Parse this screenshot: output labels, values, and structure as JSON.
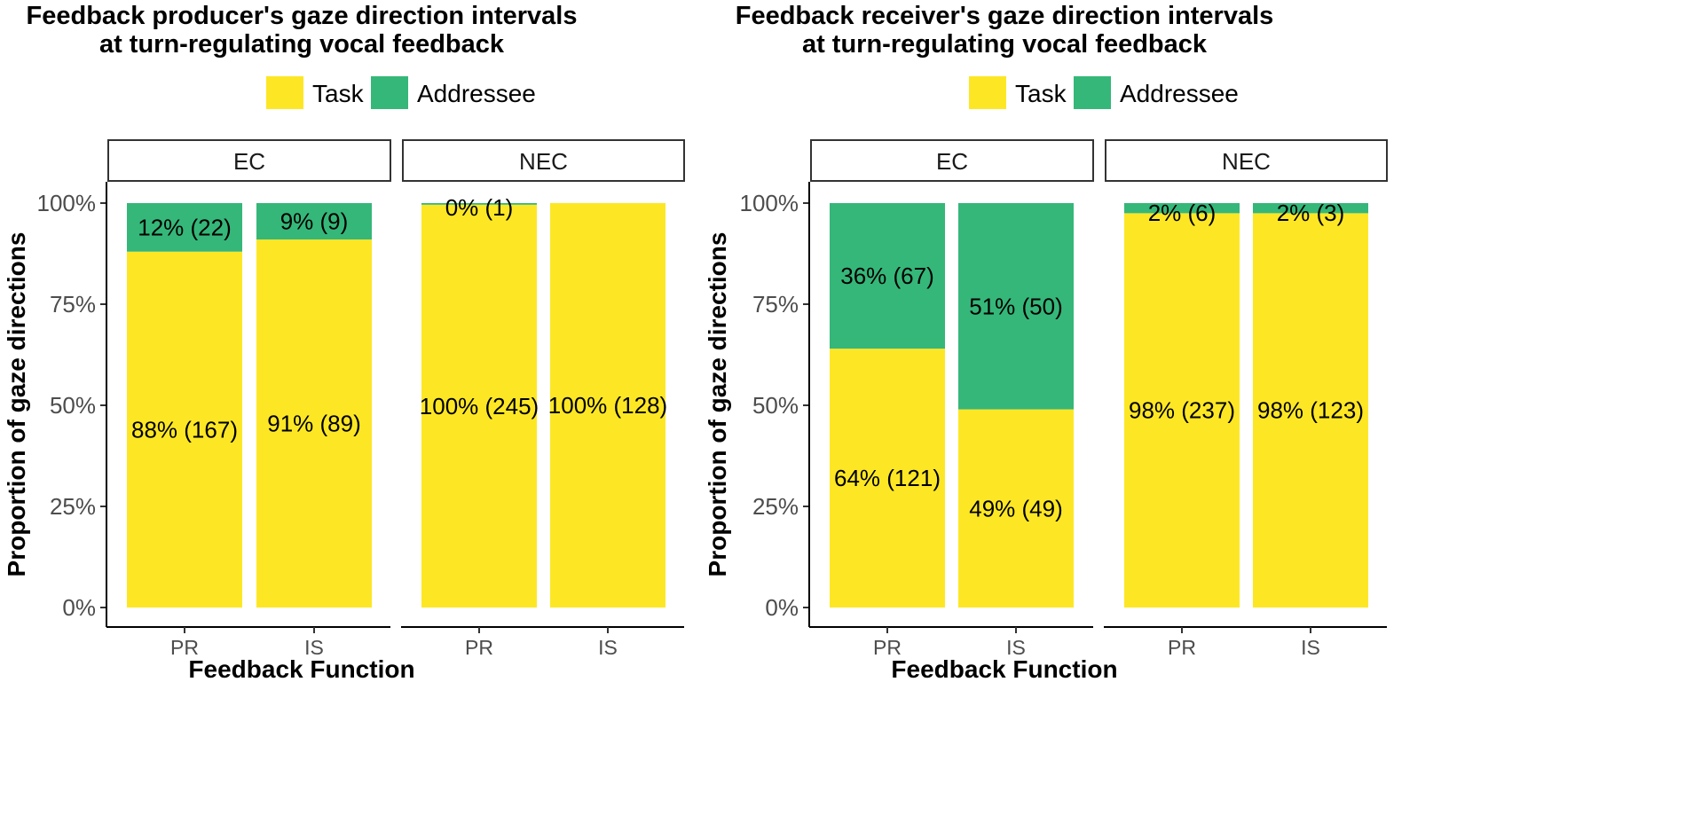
{
  "chart_data": [
    {
      "type": "bar",
      "stacked": true,
      "title": [
        "Feedback producer's gaze direction intervals",
        "at turn-regulating vocal feedback"
      ],
      "xlabel": "Feedback Function",
      "ylabel": "Proportion of gaze directions",
      "ylim": [
        0,
        1
      ],
      "yticks": [
        "0%",
        "25%",
        "50%",
        "75%",
        "100%"
      ],
      "legend": {
        "position": "top",
        "entries": [
          "Task",
          "Addressee"
        ]
      },
      "colors": {
        "Task": "#fde725",
        "Addressee": "#35b779"
      },
      "facets": [
        {
          "name": "EC",
          "categories": [
            "PR",
            "IS"
          ],
          "series": [
            {
              "name": "Task",
              "values": [
                0.88,
                0.91
              ],
              "labels": [
                "88% (167)",
                "91% (89)"
              ]
            },
            {
              "name": "Addressee",
              "values": [
                0.12,
                0.09
              ],
              "labels": [
                "12% (22)",
                "9% (9)"
              ]
            }
          ]
        },
        {
          "name": "NEC",
          "categories": [
            "PR",
            "IS"
          ],
          "series": [
            {
              "name": "Task",
              "values": [
                0.996,
                1.0
              ],
              "labels": [
                "100% (245)",
                "100% (128)"
              ]
            },
            {
              "name": "Addressee",
              "values": [
                0.004,
                0.0
              ],
              "labels": [
                "0% (1)",
                ""
              ]
            }
          ]
        }
      ]
    },
    {
      "type": "bar",
      "stacked": true,
      "title": [
        "Feedback receiver's gaze direction intervals",
        "at turn-regulating vocal feedback"
      ],
      "xlabel": "Feedback Function",
      "ylabel": "Proportion of gaze directions",
      "ylim": [
        0,
        1
      ],
      "yticks": [
        "0%",
        "25%",
        "50%",
        "75%",
        "100%"
      ],
      "legend": {
        "position": "top",
        "entries": [
          "Task",
          "Addressee"
        ]
      },
      "colors": {
        "Task": "#fde725",
        "Addressee": "#35b779"
      },
      "facets": [
        {
          "name": "EC",
          "categories": [
            "PR",
            "IS"
          ],
          "series": [
            {
              "name": "Task",
              "values": [
                0.64,
                0.49
              ],
              "labels": [
                "64% (121)",
                "49% (49)"
              ]
            },
            {
              "name": "Addressee",
              "values": [
                0.36,
                0.51
              ],
              "labels": [
                "36% (67)",
                "51% (50)"
              ]
            }
          ]
        },
        {
          "name": "NEC",
          "categories": [
            "PR",
            "IS"
          ],
          "series": [
            {
              "name": "Task",
              "values": [
                0.975,
                0.975
              ],
              "labels": [
                "98% (237)",
                "98% (123)"
              ]
            },
            {
              "name": "Addressee",
              "values": [
                0.025,
                0.025
              ],
              "labels": [
                "2% (6)",
                "2% (3)"
              ]
            }
          ]
        }
      ]
    }
  ]
}
